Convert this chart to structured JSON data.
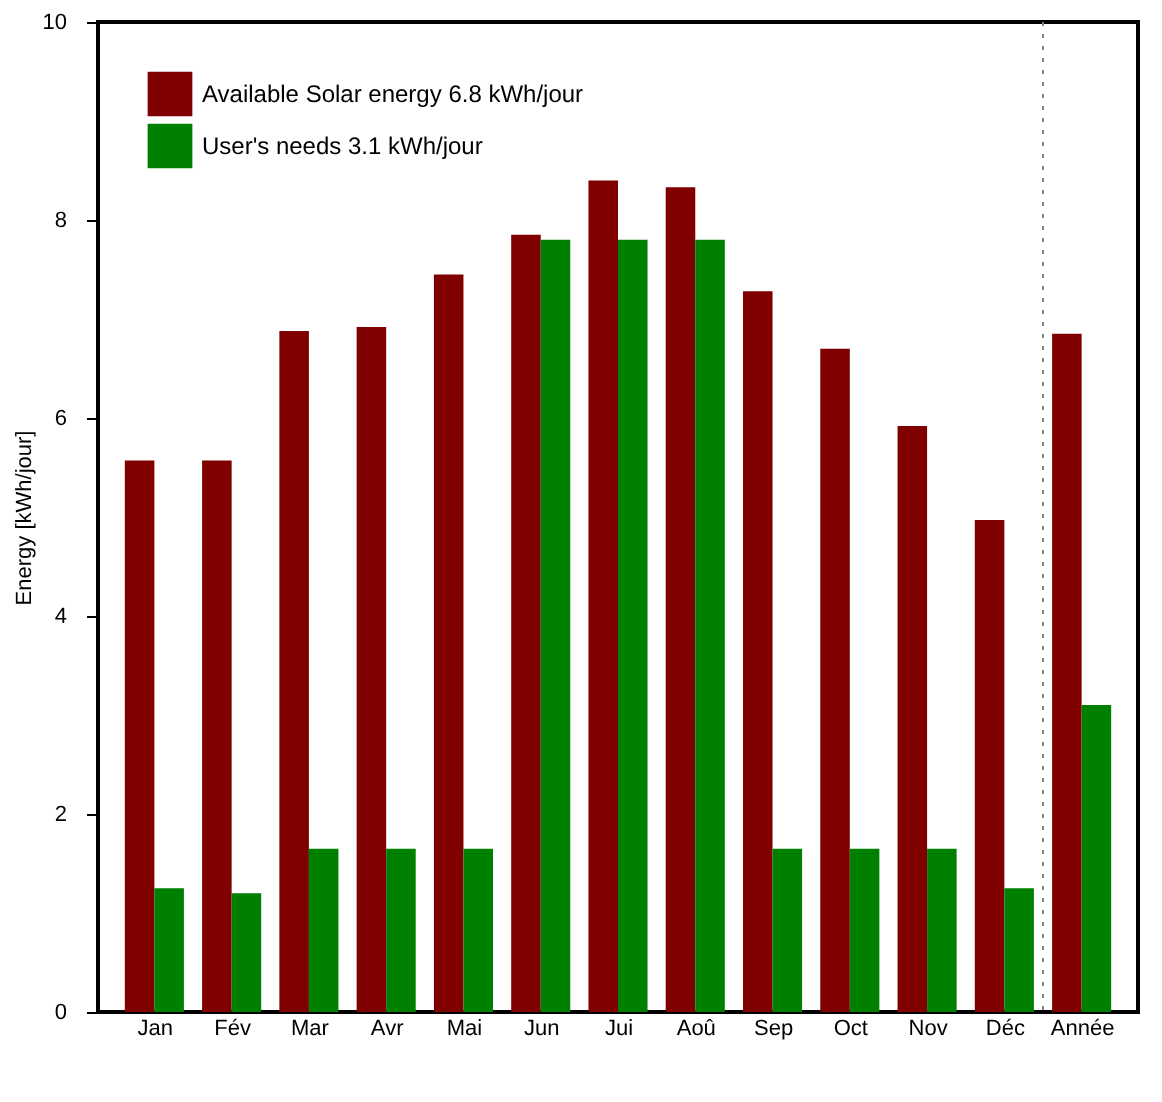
{
  "chart_data": {
    "type": "bar",
    "ylabel": "Energy [kWh/jour]",
    "categories": [
      "Jan",
      "Fév",
      "Mar",
      "Avr",
      "Mai",
      "Jun",
      "Jui",
      "Aoû",
      "Sep",
      "Oct",
      "Nov",
      "Déc",
      "Année"
    ],
    "series": [
      {
        "name": "Available Solar energy    6.8 kWh/jour",
        "color": "#800000",
        "values": [
          5.57,
          5.57,
          6.88,
          6.92,
          7.45,
          7.85,
          8.4,
          8.33,
          7.28,
          6.7,
          5.92,
          4.97,
          6.85
        ]
      },
      {
        "name": "User's needs    3.1 kWh/jour",
        "color": "#008000",
        "values": [
          1.25,
          1.2,
          1.65,
          1.65,
          1.65,
          7.8,
          7.8,
          7.8,
          1.65,
          1.65,
          1.65,
          1.25,
          3.1
        ]
      }
    ],
    "ylim": [
      0,
      10
    ],
    "yticks": [
      0,
      2,
      4,
      6,
      8,
      10
    ],
    "grid": false,
    "legend": "top left"
  }
}
